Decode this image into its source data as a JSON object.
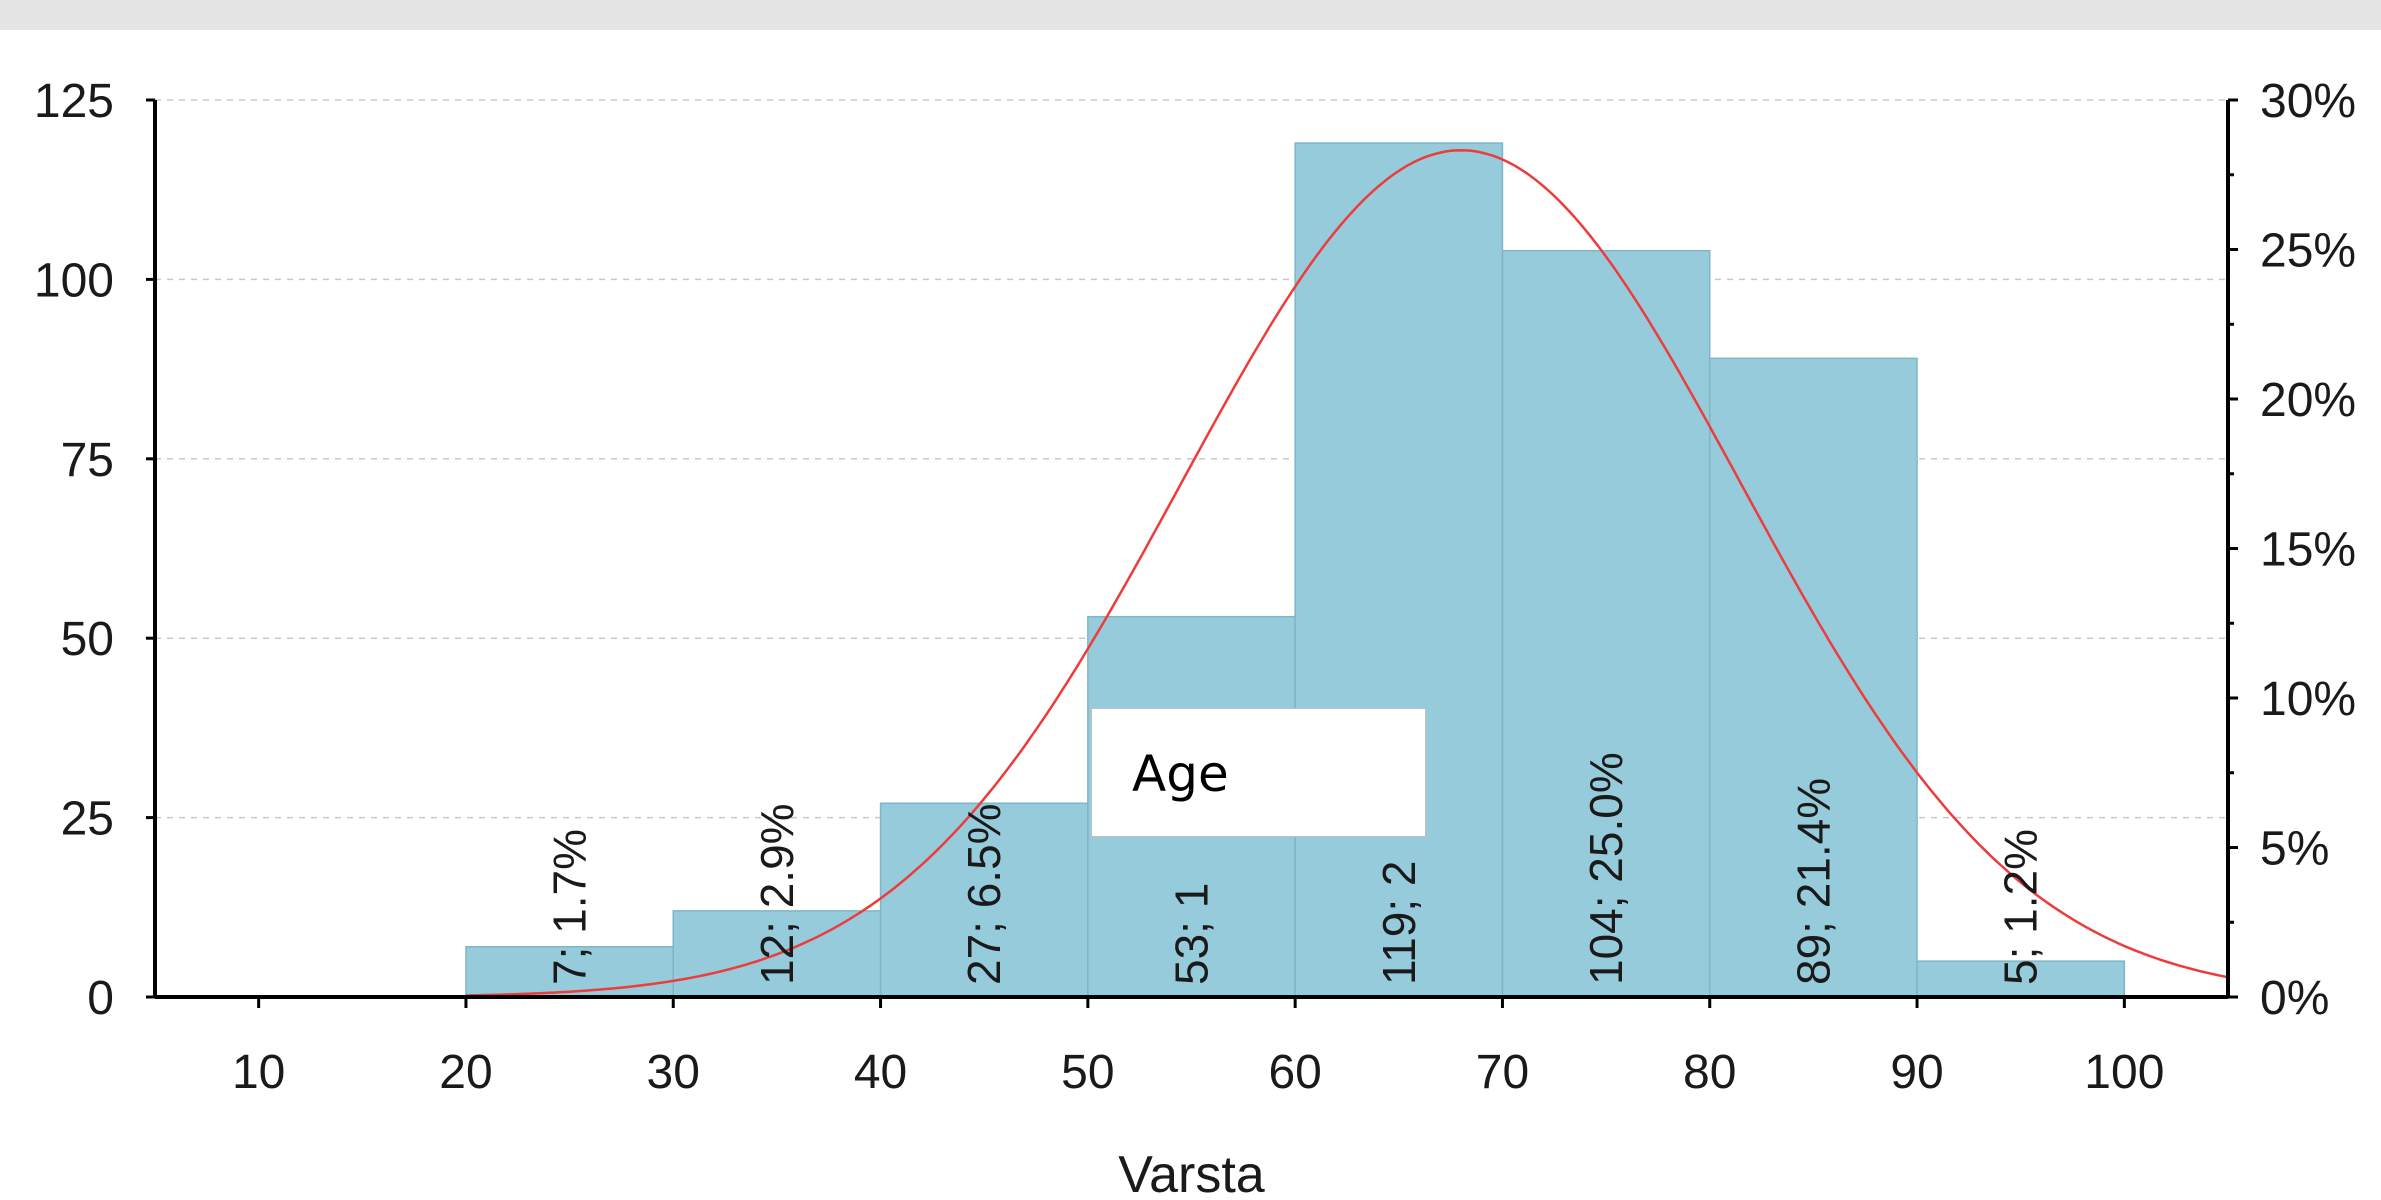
{
  "chart_data": {
    "type": "bar",
    "xlabel": "Varsta",
    "x_ticks": [
      10,
      20,
      30,
      40,
      50,
      60,
      70,
      80,
      90,
      100
    ],
    "xlim": [
      5,
      105
    ],
    "y_ticks_left": [
      0,
      25,
      50,
      75,
      100,
      125
    ],
    "ylim_left": [
      0,
      125
    ],
    "y_ticks_right": [
      "0%",
      "5%",
      "10%",
      "15%",
      "20%",
      "25%",
      "30%"
    ],
    "ylim_right": [
      0,
      30
    ],
    "bins": [
      {
        "from": 20,
        "to": 30,
        "count": 7,
        "label": "7; 1.7%"
      },
      {
        "from": 30,
        "to": 40,
        "count": 12,
        "label": "12; 2.9%"
      },
      {
        "from": 40,
        "to": 50,
        "count": 27,
        "label": "27; 6.5%"
      },
      {
        "from": 50,
        "to": 60,
        "count": 53,
        "label": "53; 1"
      },
      {
        "from": 60,
        "to": 70,
        "count": 119,
        "label": "119; 2"
      },
      {
        "from": 70,
        "to": 80,
        "count": 104,
        "label": "104; 25.0%"
      },
      {
        "from": 80,
        "to": 90,
        "count": 89,
        "label": "89; 21.4%"
      },
      {
        "from": 90,
        "to": 100,
        "count": 5,
        "label": "5; 1.2%"
      }
    ],
    "normal_curve": {
      "mean": 68,
      "sd": 13.5,
      "peak": 118
    },
    "grid": "horizontal dashed",
    "legend": "Age",
    "colors": {
      "bar": "#96cbdb",
      "bar_edge": "#7fb6c6",
      "curve": "#ee3b3b",
      "axis": "#000000",
      "grid": "#c8c8c8"
    }
  }
}
